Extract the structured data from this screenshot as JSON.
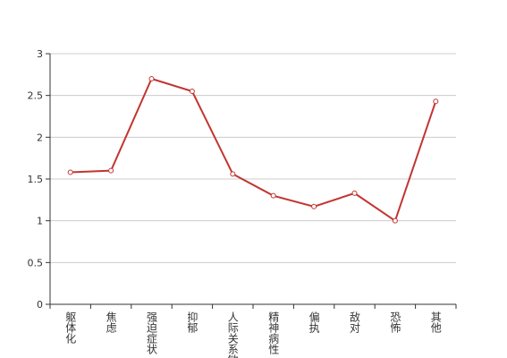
{
  "chart_data": {
    "type": "line",
    "categories": [
      "躯体化",
      "焦虑",
      "强迫症状",
      "抑郁",
      "人际关系敏感",
      "精神病性",
      "偏执",
      "敌对",
      "恐怖",
      "其他"
    ],
    "series": [
      {
        "color": "#c23531",
        "values": [
          1.58,
          1.6,
          2.7,
          2.55,
          1.56,
          1.3,
          1.17,
          1.33,
          1.0,
          2.43
        ]
      }
    ],
    "ylim": [
      0,
      3
    ],
    "yticks": [
      0,
      0.5,
      1,
      1.5,
      2,
      2.5,
      3
    ],
    "grid": true
  }
}
